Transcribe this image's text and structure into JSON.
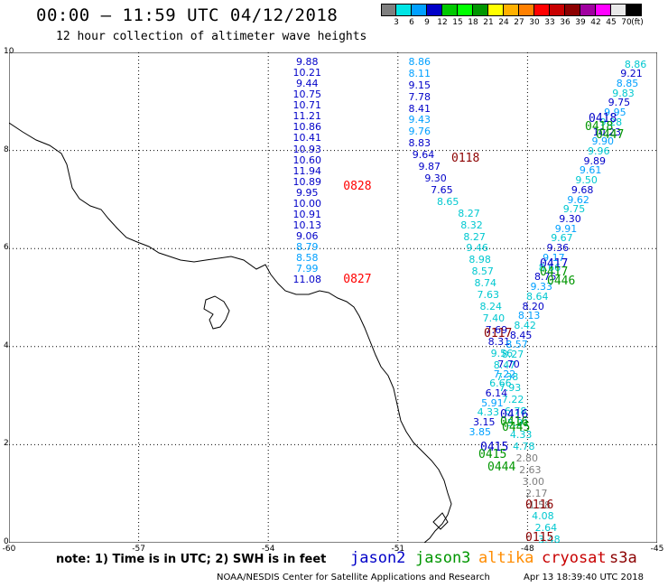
{
  "header": {
    "title": "00:00 – 11:59 UTC 04/12/2018",
    "subtitle": "12 hour collection of altimeter wave heights"
  },
  "color_scale": {
    "unit": "(ft)",
    "ticks": [
      "3",
      "6",
      "9",
      "12",
      "15",
      "18",
      "21",
      "24",
      "27",
      "30",
      "33",
      "36",
      "39",
      "42",
      "45",
      "70"
    ],
    "colors": [
      "#7f7f7f",
      "#00e5e5",
      "#00a0ff",
      "#0000c8",
      "#00c800",
      "#00ff00",
      "#009600",
      "#ffff00",
      "#ffb000",
      "#ff8000",
      "#ff0000",
      "#c80000",
      "#8c0000",
      "#a000a0",
      "#ff00ff",
      "#e8e8e8",
      "#000000"
    ]
  },
  "axes": {
    "y_ticks": [
      "10",
      "8",
      "6",
      "4",
      "2",
      "0"
    ],
    "x_ticks": [
      "-60",
      "-57",
      "-54",
      "-51",
      "-48",
      "-45"
    ]
  },
  "map": {
    "lat_range": [
      0,
      10
    ],
    "lon_range": [
      -60,
      -45
    ],
    "coastline_name": "coastline"
  },
  "satellites": {
    "jason2": {
      "name": "jason2",
      "color": "#0000c8"
    },
    "jason3": {
      "name": "jason3",
      "color": "#009600"
    },
    "altika": {
      "name": "altika",
      "color": "#ff8c00"
    },
    "cryosat": {
      "name": "cryosat",
      "color": "#c80000"
    },
    "s3a": {
      "name": "s3a",
      "color": "#8c0000"
    }
  },
  "track_a": {
    "color_values": [
      "#0000c8",
      "#00a0ff"
    ],
    "lon": -53.1,
    "values": [
      "9.88",
      "10.21",
      "9.44",
      "10.75",
      "10.71",
      "11.21",
      "10.86",
      "10.41",
      "10.93",
      "10.60",
      "11.94",
      "10.89",
      "9.95",
      "10.00",
      "10.91",
      "10.13",
      "9.06",
      "8.79",
      "8.58",
      "7.99",
      "11.08"
    ],
    "lat_start": 9.8,
    "lat_end": 5.35,
    "pass_labels": [
      {
        "text": "0828",
        "lat": 7.25,
        "color": "#ff0000"
      },
      {
        "text": "0827",
        "lat": 5.35,
        "color": "#ff0000"
      }
    ]
  },
  "track_b": {
    "values": [
      "8.86",
      "8.11",
      "9.15",
      "7.78",
      "8.41",
      "9.43",
      "9.76",
      "8.83",
      "9.64",
      "9.87",
      "9.30",
      "7.65",
      "8.65",
      "8.27",
      "8.32",
      "8.27",
      "9.46",
      "8.98",
      "8.57",
      "8.74",
      "7.63",
      "8.24",
      "7.40",
      "7.69",
      "8.31",
      "9.56",
      "8.47",
      "7.38",
      "7.93",
      "7.22",
      "6.78",
      "5.91",
      "4.33",
      "4.78",
      "2.80",
      "2.63",
      "3.00",
      "2.17",
      "1.58",
      "4.08",
      "2.64",
      "3.48"
    ],
    "lat_start": 9.8,
    "lat_end": 0.05,
    "pass_labels": [
      {
        "text": "0118",
        "lat": 7.65,
        "color": "#8c0000"
      },
      {
        "text": "0117",
        "lat": 3.95,
        "color": "#8c0000"
      },
      {
        "text": "0116",
        "lat": 0.8,
        "color": "#8c0000"
      },
      {
        "text": "0115",
        "lat": 0.05,
        "color": "#8c0000"
      }
    ]
  },
  "track_c": {
    "values": [
      "8.86",
      "9.21",
      "8.85",
      "9.83",
      "9.75",
      "9.95",
      "9.28",
      "10.23",
      "9.90",
      "9.96",
      "9.89",
      "9.61",
      "9.50",
      "9.68",
      "9.62",
      "9.75",
      "9.30",
      "9.91",
      "9.67",
      "9.36",
      "9.17",
      "8.66",
      "8.75",
      "9.33",
      "8.64",
      "8.20",
      "8.13",
      "8.42",
      "8.45",
      "8.57",
      "8.27",
      "7.70",
      "7.22",
      "6.66",
      "6.14",
      "5.91",
      "4.33",
      "3.15",
      "3.85"
    ],
    "pass_labels": [
      {
        "text": "0418",
        "lat": 8.55,
        "color": "#0000c8"
      },
      {
        "text": "0418",
        "lat": 8.4,
        "color": "#009600"
      },
      {
        "text": "0447",
        "lat": 8.2,
        "color": "#009600"
      },
      {
        "text": "0417",
        "lat": 5.8,
        "color": "#0000c8"
      },
      {
        "text": "0417",
        "lat": 5.65,
        "color": "#009600"
      },
      {
        "text": "0446",
        "lat": 5.45,
        "color": "#009600"
      },
      {
        "text": "0416",
        "lat": 2.8,
        "color": "#0000c8"
      },
      {
        "text": "0416",
        "lat": 2.7,
        "color": "#009600"
      },
      {
        "text": "0445",
        "lat": 2.45,
        "color": "#009600"
      },
      {
        "text": "0415",
        "lat": 1.8,
        "color": "#0000c8"
      },
      {
        "text": "0415",
        "lat": 1.6,
        "color": "#009600"
      },
      {
        "text": "0444",
        "lat": 1.35,
        "color": "#009600"
      }
    ]
  },
  "footer": {
    "note": "note: 1) Time is in UTC; 2) SWH is in feet",
    "credit": "NOAA/NESDIS Center for Satellite Applications and Research",
    "timestamp": "Apr 13 18:39:40 UTC 2018"
  }
}
